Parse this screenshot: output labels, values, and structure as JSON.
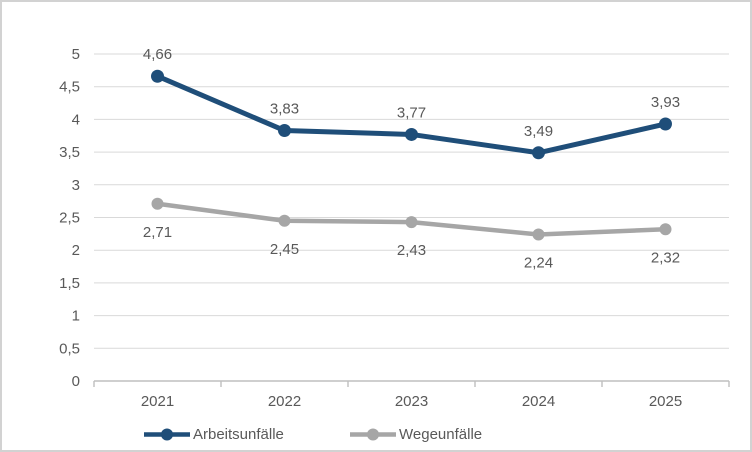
{
  "colors": {
    "background": "#ffffff",
    "frame_border": "#d2d2d2",
    "gridline": "#d9d9d9",
    "axis_line": "#bfbfbf",
    "label_text": "#595959",
    "series_arbeitsunfaelle": "#1f4e79",
    "series_wegeunfaelle": "#a6a6a6"
  },
  "chart_data": {
    "type": "line",
    "title": "",
    "xlabel": "",
    "ylabel": "",
    "categories": [
      "2021",
      "2022",
      "2023",
      "2024",
      "2025"
    ],
    "series": [
      {
        "name": "Arbeitsunfälle",
        "color": "#1f4e79",
        "values": [
          4.66,
          3.83,
          3.77,
          3.49,
          3.93
        ],
        "data_labels": [
          "4,66",
          "3,83",
          "3,77",
          "3,49",
          "3,93"
        ],
        "label_position": "above"
      },
      {
        "name": "Wegeunfälle",
        "color": "#a6a6a6",
        "values": [
          2.71,
          2.45,
          2.43,
          2.24,
          2.32
        ],
        "data_labels": [
          "2,71",
          "2,45",
          "2,43",
          "2,24",
          "2,32"
        ],
        "label_position": "below"
      }
    ],
    "ylim": [
      0,
      5
    ],
    "y_tick_step": 0.5,
    "y_tick_labels": [
      "0",
      "0,5",
      "1",
      "1,5",
      "2",
      "2,5",
      "3",
      "3,5",
      "4",
      "4,5",
      "5"
    ],
    "decimal_separator": ",",
    "grid": true,
    "legend_position": "bottom",
    "markers": true
  }
}
